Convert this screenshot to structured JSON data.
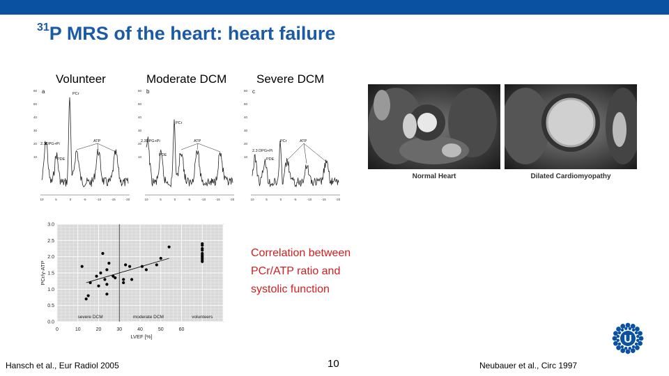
{
  "slide": {
    "title_sup": "31",
    "title_main": "P MRS of the heart: heart failure",
    "page_number": "10",
    "footer_left": "Hansch et al., Eur Radiol 2005",
    "footer_right": "Neubauer  et al., Circ 1997",
    "correlation_lines": [
      "Correlation between",
      "PCr/ATP ratio and",
      "systolic function"
    ],
    "colors": {
      "topbar": "#0a52a1",
      "title": "#1a5aa6",
      "correlation_text": "#d21e1e"
    }
  },
  "spectra": [
    {
      "label": "Volunteer",
      "panel": "a",
      "peaks": [
        "2.3DPG+Pi",
        "PDE",
        "PCr",
        "ATP"
      ],
      "y_ticks": [
        "60",
        "50",
        "40",
        "30",
        "20",
        "10"
      ],
      "x_ticks": [
        "10",
        "5",
        "0",
        "-5",
        "-10",
        "-15",
        "-20"
      ]
    },
    {
      "label": "Moderate DCM",
      "panel": "b",
      "peaks": [
        "2.3DPG+Pi",
        "PDE",
        "PCr",
        "ATP"
      ],
      "y_ticks": [
        "60",
        "50",
        "40",
        "30",
        "20",
        "10"
      ],
      "x_ticks": [
        "10",
        "5",
        "0",
        "-5",
        "-10",
        "-15",
        "-20"
      ]
    },
    {
      "label": "Severe DCM",
      "panel": "c",
      "peaks": [
        "2.3 DPG+Pi",
        "PDE",
        "PCr",
        "ATP"
      ],
      "y_ticks": [
        "60",
        "50",
        "40",
        "30",
        "20",
        "10"
      ],
      "x_ticks": [
        "10",
        "5",
        "0",
        "-5",
        "-10",
        "-15",
        "-20"
      ]
    }
  ],
  "mri": {
    "captions": [
      "Normal Heart",
      "Dilated Cardiomyopathy"
    ]
  },
  "chart_data": {
    "type": "scatter",
    "xlabel": "LVEF  [%]",
    "ylabel": "PCr/γ-ATP",
    "xlim": [
      0,
      80
    ],
    "ylim": [
      0,
      3.0
    ],
    "x_ticks": [
      "0",
      "10",
      "20",
      "30",
      "40",
      "50",
      "60"
    ],
    "y_ticks": [
      "0.0",
      "0.5",
      "1.0",
      "1.5",
      "2.0",
      "2.5",
      "3.0"
    ],
    "grid": true,
    "group_labels": [
      "severe DCM",
      "moderate DCM",
      "volunteers"
    ],
    "divider_x": 30,
    "regression": [
      [
        14,
        1.2
      ],
      [
        54,
        1.95
      ]
    ],
    "points": [
      [
        12,
        1.7
      ],
      [
        14,
        0.7
      ],
      [
        15,
        0.8
      ],
      [
        16,
        1.2
      ],
      [
        19,
        1.4
      ],
      [
        20,
        1.1
      ],
      [
        21,
        1.5
      ],
      [
        22,
        2.1
      ],
      [
        23,
        1.3
      ],
      [
        24,
        1.6
      ],
      [
        24,
        1.15
      ],
      [
        24,
        0.85
      ],
      [
        25,
        1.8
      ],
      [
        27,
        1.4
      ],
      [
        28,
        1.35
      ],
      [
        32,
        1.3
      ],
      [
        32,
        1.2
      ],
      [
        33,
        1.75
      ],
      [
        35,
        1.7
      ],
      [
        36,
        1.3
      ],
      [
        41,
        1.7
      ],
      [
        43,
        1.6
      ],
      [
        48,
        1.75
      ],
      [
        50,
        1.95
      ],
      [
        54,
        2.3
      ]
    ],
    "volunteers": [
      [
        70,
        2.4
      ],
      [
        70,
        2.35
      ],
      [
        70,
        2.25
      ],
      [
        70,
        2.2
      ],
      [
        70,
        2.1
      ],
      [
        70,
        2.05
      ],
      [
        70,
        2.0
      ],
      [
        70,
        1.95
      ],
      [
        70,
        1.9
      ],
      [
        70,
        1.85
      ]
    ]
  }
}
